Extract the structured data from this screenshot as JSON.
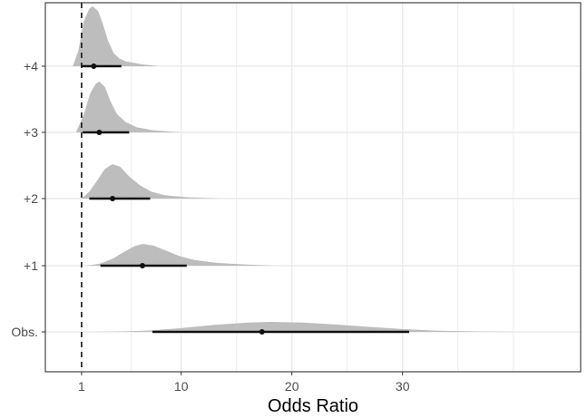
{
  "chart_data": {
    "type": "forest-density",
    "xlabel": "Odds Ratio",
    "x_ticks": [
      1,
      10,
      20,
      30
    ],
    "xlim": [
      -2,
      40
    ],
    "reference_line": 1,
    "rows": [
      {
        "label": "+4",
        "point": 2.1,
        "ci": [
          1.0,
          4.6
        ],
        "density": [
          [
            0.2,
            0
          ],
          [
            0.7,
            0.25
          ],
          [
            1.2,
            0.75
          ],
          [
            1.7,
            0.96
          ],
          [
            2.0,
            1.0
          ],
          [
            2.5,
            0.92
          ],
          [
            2.9,
            0.72
          ],
          [
            3.4,
            0.42
          ],
          [
            3.9,
            0.22
          ],
          [
            4.4,
            0.13
          ],
          [
            5.0,
            0.08
          ],
          [
            6.5,
            0.03
          ],
          [
            8.0,
            0
          ]
        ]
      },
      {
        "label": "+3",
        "point": 2.6,
        "ci": [
          1.1,
          5.3
        ],
        "density": [
          [
            0.5,
            0
          ],
          [
            1.2,
            0.35
          ],
          [
            1.8,
            0.78
          ],
          [
            2.3,
            0.96
          ],
          [
            2.6,
            1.0
          ],
          [
            3.1,
            0.9
          ],
          [
            3.6,
            0.62
          ],
          [
            4.2,
            0.36
          ],
          [
            5.0,
            0.2
          ],
          [
            6.0,
            0.1
          ],
          [
            7.5,
            0.04
          ],
          [
            10.0,
            0
          ]
        ]
      },
      {
        "label": "+2",
        "point": 3.8,
        "ci": [
          1.7,
          7.2
        ],
        "density": [
          [
            1.0,
            0
          ],
          [
            1.7,
            0.2
          ],
          [
            2.4,
            0.52
          ],
          [
            3.1,
            0.86
          ],
          [
            3.8,
            1.0
          ],
          [
            4.5,
            0.92
          ],
          [
            5.3,
            0.64
          ],
          [
            6.3,
            0.38
          ],
          [
            7.3,
            0.2
          ],
          [
            8.5,
            0.1
          ],
          [
            10.5,
            0.04
          ],
          [
            13.5,
            0
          ]
        ]
      },
      {
        "label": "+1",
        "point": 6.5,
        "ci": [
          2.7,
          10.5
        ],
        "density": [
          [
            1.5,
            0
          ],
          [
            2.7,
            0.1
          ],
          [
            3.8,
            0.32
          ],
          [
            4.8,
            0.62
          ],
          [
            5.8,
            0.9
          ],
          [
            6.5,
            1.0
          ],
          [
            7.5,
            0.92
          ],
          [
            8.5,
            0.72
          ],
          [
            9.8,
            0.45
          ],
          [
            11.2,
            0.26
          ],
          [
            13.0,
            0.14
          ],
          [
            15.5,
            0.06
          ],
          [
            18.5,
            0
          ]
        ]
      },
      {
        "label": "Obs.",
        "point": 17.3,
        "ci": [
          7.4,
          30.6
        ],
        "density": [
          [
            2.0,
            0
          ],
          [
            4.5,
            0.03
          ],
          [
            7.0,
            0.12
          ],
          [
            10.0,
            0.38
          ],
          [
            13.0,
            0.7
          ],
          [
            16.0,
            0.93
          ],
          [
            18.0,
            1.0
          ],
          [
            21.0,
            0.93
          ],
          [
            24.0,
            0.74
          ],
          [
            27.0,
            0.5
          ],
          [
            30.0,
            0.28
          ],
          [
            33.0,
            0.12
          ],
          [
            37.0,
            0.03
          ],
          [
            40.0,
            0
          ]
        ]
      }
    ],
    "colors": {
      "density_fill": "#bdbdbd",
      "interval": "#111111",
      "gridline": "#ebebeb",
      "panel_border": "#333333",
      "reference": "#222222"
    }
  }
}
